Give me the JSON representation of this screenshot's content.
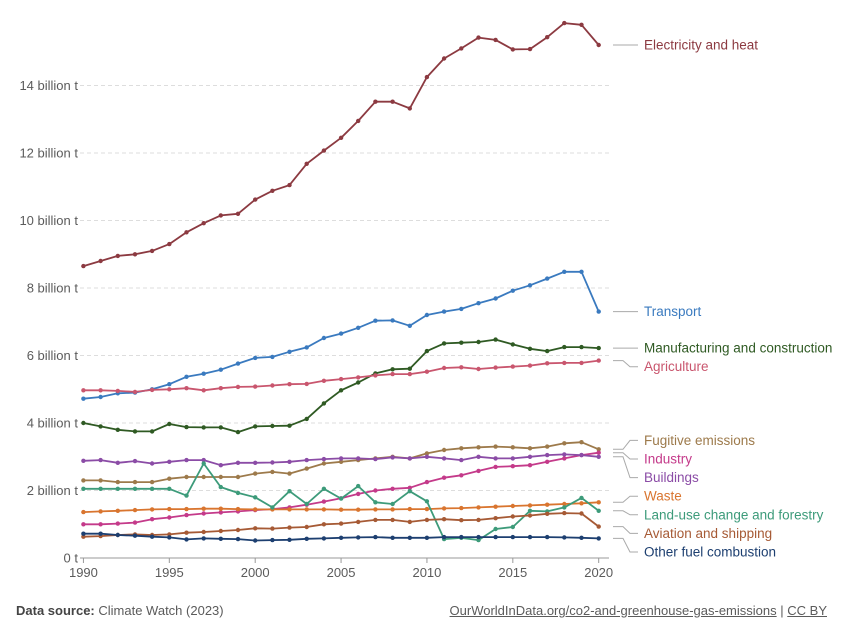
{
  "chart_data": {
    "type": "line",
    "title": "",
    "xlabel": "",
    "ylabel": "",
    "ylim": [
      0,
      16000000000
    ],
    "xlim": [
      1989.8,
      2020.6
    ],
    "grid": "horizontal dashed",
    "y_ticks": [
      {
        "value": 0,
        "label": "0 t"
      },
      {
        "value": 2000000000,
        "label": "2 billion t"
      },
      {
        "value": 4000000000,
        "label": "4 billion t"
      },
      {
        "value": 6000000000,
        "label": "6 billion t"
      },
      {
        "value": 8000000000,
        "label": "8 billion t"
      },
      {
        "value": 10000000000,
        "label": "10 billion t"
      },
      {
        "value": 12000000000,
        "label": "12 billion t"
      },
      {
        "value": 14000000000,
        "label": "14 billion t"
      }
    ],
    "x_ticks": [
      {
        "value": 1990,
        "label": "1990"
      },
      {
        "value": 1995,
        "label": "1995"
      },
      {
        "value": 2000,
        "label": "2000"
      },
      {
        "value": 2005,
        "label": "2005"
      },
      {
        "value": 2010,
        "label": "2010"
      },
      {
        "value": 2015,
        "label": "2015"
      },
      {
        "value": 2020,
        "label": "2020"
      }
    ],
    "x": [
      1990,
      1991,
      1992,
      1993,
      1994,
      1995,
      1996,
      1997,
      1998,
      1999,
      2000,
      2001,
      2002,
      2003,
      2004,
      2005,
      2006,
      2007,
      2008,
      2009,
      2010,
      2011,
      2012,
      2013,
      2014,
      2015,
      2016,
      2017,
      2018,
      2019,
      2020
    ],
    "unit_scale": 1000000000,
    "series": [
      {
        "name": "Electricity and heat",
        "color": "#8c3a41",
        "values": [
          8.65,
          8.8,
          8.95,
          9.0,
          9.1,
          9.3,
          9.65,
          9.92,
          10.15,
          10.2,
          10.62,
          10.88,
          11.05,
          11.68,
          12.07,
          12.45,
          12.95,
          13.52,
          13.52,
          13.32,
          14.25,
          14.8,
          15.1,
          15.42,
          15.35,
          15.07,
          15.08,
          15.43,
          15.85,
          15.8,
          15.2
        ]
      },
      {
        "name": "Transport",
        "color": "#3a7abf",
        "values": [
          4.72,
          4.77,
          4.88,
          4.9,
          5.0,
          5.15,
          5.37,
          5.46,
          5.58,
          5.76,
          5.93,
          5.96,
          6.11,
          6.24,
          6.52,
          6.65,
          6.82,
          7.03,
          7.04,
          6.88,
          7.2,
          7.3,
          7.38,
          7.55,
          7.69,
          7.92,
          8.08,
          8.28,
          8.48,
          8.48,
          7.3
        ]
      },
      {
        "name": "Manufacturing and construction",
        "color": "#2f5a23",
        "values": [
          4.0,
          3.9,
          3.8,
          3.75,
          3.75,
          3.97,
          3.88,
          3.87,
          3.87,
          3.73,
          3.9,
          3.91,
          3.92,
          4.12,
          4.58,
          4.97,
          5.2,
          5.47,
          5.59,
          5.61,
          6.13,
          6.36,
          6.38,
          6.4,
          6.47,
          6.33,
          6.2,
          6.13,
          6.25,
          6.25,
          6.22
        ]
      },
      {
        "name": "Agriculture",
        "color": "#c9566e",
        "values": [
          4.97,
          4.97,
          4.95,
          4.92,
          4.98,
          5.0,
          5.03,
          4.97,
          5.03,
          5.07,
          5.08,
          5.11,
          5.15,
          5.16,
          5.25,
          5.3,
          5.35,
          5.41,
          5.45,
          5.45,
          5.52,
          5.63,
          5.65,
          5.6,
          5.64,
          5.67,
          5.7,
          5.77,
          5.78,
          5.78,
          5.85
        ]
      },
      {
        "name": "Fugitive emissions",
        "color": "#9d7a4b",
        "values": [
          2.3,
          2.3,
          2.25,
          2.25,
          2.25,
          2.35,
          2.4,
          2.4,
          2.4,
          2.4,
          2.5,
          2.55,
          2.5,
          2.65,
          2.8,
          2.85,
          2.9,
          2.95,
          3.0,
          2.95,
          3.1,
          3.2,
          3.25,
          3.28,
          3.3,
          3.28,
          3.25,
          3.3,
          3.4,
          3.43,
          3.22
        ]
      },
      {
        "name": "Industry",
        "color": "#c43a8a",
        "values": [
          1.0,
          1.0,
          1.02,
          1.05,
          1.15,
          1.2,
          1.27,
          1.32,
          1.35,
          1.38,
          1.42,
          1.45,
          1.5,
          1.58,
          1.67,
          1.77,
          1.9,
          2.0,
          2.05,
          2.08,
          2.25,
          2.38,
          2.45,
          2.58,
          2.7,
          2.72,
          2.75,
          2.85,
          2.95,
          3.05,
          3.12
        ]
      },
      {
        "name": "Buildings",
        "color": "#8b4ca6",
        "values": [
          2.88,
          2.9,
          2.82,
          2.87,
          2.8,
          2.85,
          2.9,
          2.9,
          2.75,
          2.82,
          2.82,
          2.83,
          2.85,
          2.9,
          2.93,
          2.95,
          2.95,
          2.93,
          2.98,
          2.95,
          3.0,
          2.95,
          2.9,
          3.0,
          2.95,
          2.95,
          3.0,
          3.05,
          3.07,
          3.05,
          3.0
        ]
      },
      {
        "name": "Waste",
        "color": "#d9752f",
        "values": [
          1.36,
          1.38,
          1.4,
          1.42,
          1.44,
          1.45,
          1.45,
          1.46,
          1.46,
          1.45,
          1.44,
          1.44,
          1.44,
          1.44,
          1.44,
          1.43,
          1.43,
          1.44,
          1.44,
          1.45,
          1.45,
          1.47,
          1.48,
          1.5,
          1.52,
          1.54,
          1.56,
          1.58,
          1.6,
          1.62,
          1.65
        ]
      },
      {
        "name": "Land-use change and forestry",
        "color": "#3d9b7a",
        "values": [
          2.05,
          2.05,
          2.05,
          2.05,
          2.05,
          2.05,
          1.85,
          2.8,
          2.1,
          1.93,
          1.8,
          1.5,
          1.98,
          1.6,
          2.05,
          1.76,
          2.13,
          1.65,
          1.6,
          1.98,
          1.68,
          0.56,
          0.6,
          0.53,
          0.86,
          0.92,
          1.4,
          1.38,
          1.5,
          1.78,
          1.4
        ]
      },
      {
        "name": "Aviation and shipping",
        "color": "#a65a35",
        "values": [
          0.63,
          0.65,
          0.68,
          0.7,
          0.68,
          0.7,
          0.75,
          0.77,
          0.8,
          0.83,
          0.88,
          0.87,
          0.9,
          0.92,
          1.0,
          1.02,
          1.07,
          1.13,
          1.13,
          1.07,
          1.13,
          1.15,
          1.12,
          1.13,
          1.18,
          1.23,
          1.26,
          1.31,
          1.33,
          1.32,
          0.93
        ]
      },
      {
        "name": "Other fuel combustion",
        "color": "#1d3f70",
        "values": [
          0.72,
          0.72,
          0.68,
          0.66,
          0.63,
          0.61,
          0.55,
          0.58,
          0.57,
          0.56,
          0.52,
          0.53,
          0.54,
          0.57,
          0.58,
          0.6,
          0.61,
          0.62,
          0.6,
          0.6,
          0.6,
          0.62,
          0.62,
          0.62,
          0.62,
          0.62,
          0.62,
          0.62,
          0.61,
          0.6,
          0.58
        ]
      }
    ],
    "labels": [
      {
        "name": "Electricity and heat",
        "series": 0
      },
      {
        "name": "Transport",
        "series": 1
      },
      {
        "name": "Manufacturing and construction",
        "series": 2
      },
      {
        "name": "Agriculture",
        "series": 3
      },
      {
        "name": "Fugitive emissions",
        "series": 4
      },
      {
        "name": "Industry",
        "series": 5
      },
      {
        "name": "Buildings",
        "series": 6
      },
      {
        "name": "Waste",
        "series": 7
      },
      {
        "name": "Land-use change and forestry",
        "series": 8
      },
      {
        "name": "Aviation and shipping",
        "series": 9
      },
      {
        "name": "Other fuel combustion",
        "series": 10
      }
    ]
  },
  "footer": {
    "source_label": "Data source:",
    "source_text": "Climate Watch (2023)",
    "link_text": "OurWorldInData.org/co2-and-greenhouse-gas-emissions",
    "separator": "|",
    "license_text": "CC BY"
  }
}
